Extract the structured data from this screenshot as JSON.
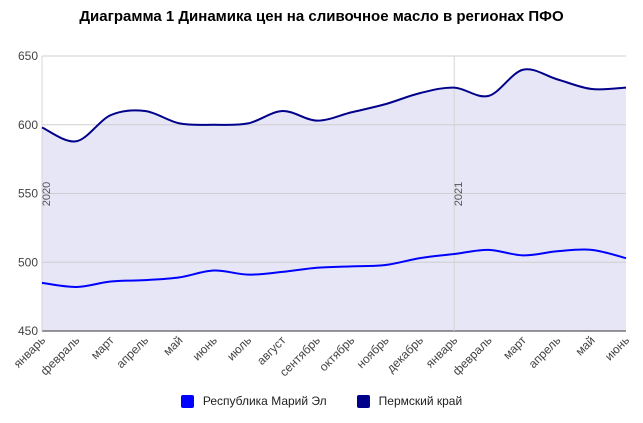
{
  "chart_data": {
    "type": "area",
    "title": "Диаграмма 1 Динамика цен на сливочное масло в регионах ПФО",
    "categories": [
      "январь",
      "февраль",
      "март",
      "апрель",
      "май",
      "июнь",
      "июль",
      "август",
      "сентябрь",
      "октябрь",
      "ноябрь",
      "декабрь",
      "январь",
      "февраль",
      "март",
      "апрель",
      "май",
      "июнь"
    ],
    "series": [
      {
        "name": "Республика Марий Эл",
        "color": "#0000ff",
        "values": [
          485,
          482,
          486,
          487,
          489,
          494,
          491,
          493,
          496,
          497,
          498,
          503,
          506,
          509,
          505,
          508,
          509,
          503
        ]
      },
      {
        "name": "Пермский край",
        "color": "#00008b",
        "values": [
          598,
          588,
          607,
          610,
          601,
          600,
          601,
          610,
          603,
          609,
          615,
          623,
          627,
          621,
          640,
          633,
          626,
          627
        ]
      }
    ],
    "ylim": [
      450,
      650
    ],
    "yticks": [
      "450",
      "500",
      "550",
      "600",
      "650"
    ],
    "year_markers": [
      {
        "index": 0,
        "label": "2020"
      },
      {
        "index": 12,
        "label": "2021"
      }
    ],
    "xlabel": "",
    "ylabel": "",
    "grid": true,
    "legend": "bottom",
    "fill_color": "#e6e6f7"
  }
}
